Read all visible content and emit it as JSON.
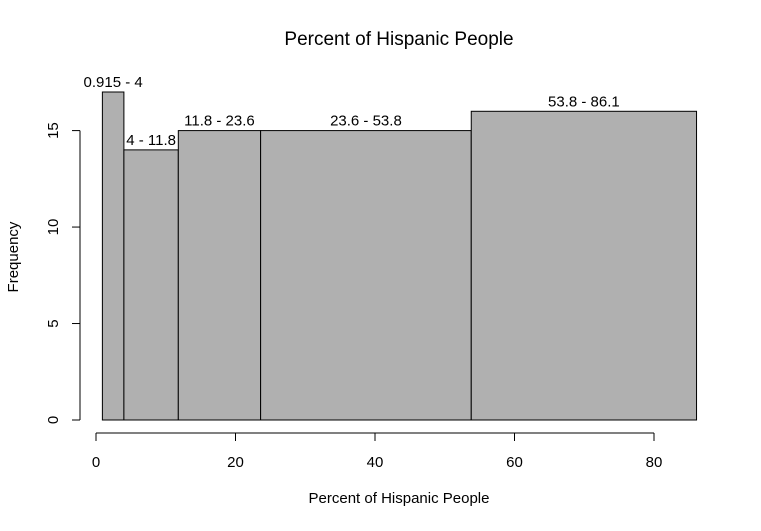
{
  "chart_data": {
    "type": "bar",
    "title": "Percent of Hispanic People",
    "xlabel": "Percent of Hispanic People",
    "ylabel": "Frequency",
    "xlim": [
      0,
      86.1
    ],
    "ylim": [
      0,
      17
    ],
    "x_ticks": [
      0,
      20,
      40,
      60,
      80
    ],
    "y_ticks": [
      0,
      5,
      10,
      15
    ],
    "bins": [
      {
        "start": 0.915,
        "end": 4,
        "label": "0.915 - 4",
        "value": 17
      },
      {
        "start": 4,
        "end": 11.8,
        "label": "4 - 11.8",
        "value": 14
      },
      {
        "start": 11.8,
        "end": 23.6,
        "label": "11.8 - 23.6",
        "value": 15
      },
      {
        "start": 23.6,
        "end": 53.8,
        "label": "23.6 - 53.8",
        "value": 15
      },
      {
        "start": 53.8,
        "end": 86.1,
        "label": "53.8 - 86.1",
        "value": 16
      }
    ],
    "bar_color": "#b0b0b0",
    "grid": false,
    "legend": "none"
  }
}
